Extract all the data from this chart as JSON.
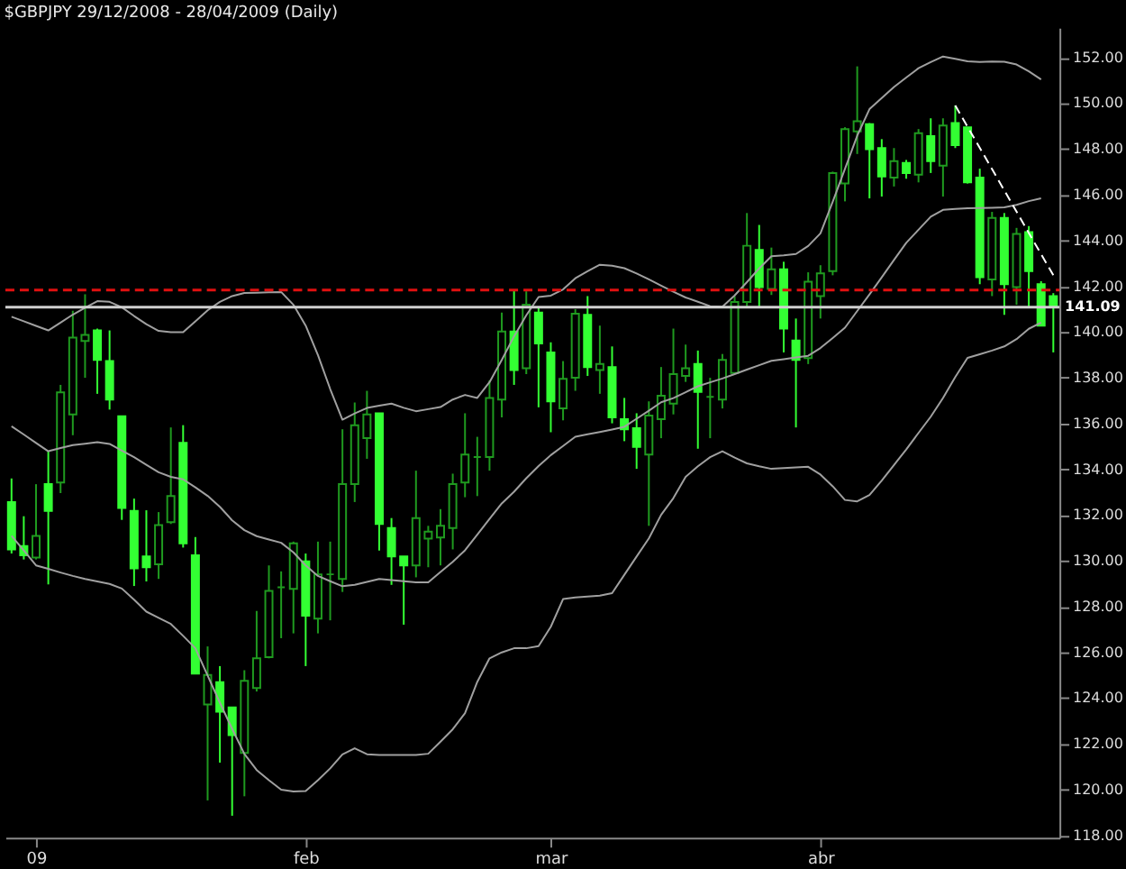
{
  "chart_data": {
    "type": "candlestick",
    "title": "$GBPJPY  29/12/2008 - 28/04/2009 (Daily)",
    "categories": [
      null,
      null,
      "09",
      null,
      null,
      null,
      null,
      null,
      null,
      null,
      null,
      null,
      null,
      null,
      null,
      null,
      null,
      null,
      null,
      null,
      null,
      null,
      null,
      null,
      "feb",
      null,
      null,
      null,
      null,
      null,
      null,
      null,
      null,
      null,
      null,
      null,
      null,
      null,
      null,
      null,
      null,
      null,
      null,
      null,
      "mar",
      null,
      null,
      null,
      null,
      null,
      null,
      null,
      null,
      null,
      null,
      null,
      null,
      null,
      null,
      null,
      null,
      null,
      null,
      null,
      null,
      null,
      "abr",
      null,
      null,
      null,
      null,
      null,
      null,
      null,
      null,
      null,
      null,
      null,
      null,
      null,
      null,
      null,
      null,
      null,
      null,
      null
    ],
    "ohlc": [
      [
        132.57,
        133.6,
        130.32,
        130.5
      ],
      [
        130.65,
        131.95,
        130.06,
        130.24
      ],
      [
        130.14,
        133.35,
        130.06,
        131.09
      ],
      [
        133.35,
        134.79,
        128.97,
        132.18
      ],
      [
        133.42,
        137.69,
        132.96,
        137.36
      ],
      [
        136.4,
        140.93,
        135.49,
        139.76
      ],
      [
        139.61,
        141.65,
        138.0,
        139.87
      ],
      [
        140.07,
        140.15,
        137.3,
        138.78
      ],
      [
        138.73,
        140.07,
        136.61,
        137.05
      ],
      [
        136.32,
        136.32,
        131.79,
        132.31
      ],
      [
        132.18,
        132.72,
        128.9,
        129.67
      ],
      [
        130.19,
        132.21,
        129.1,
        129.72
      ],
      [
        129.85,
        132.13,
        129.21,
        131.56
      ],
      [
        131.69,
        135.83,
        131.61,
        132.83
      ],
      [
        135.16,
        135.93,
        130.58,
        130.76
      ],
      [
        130.24,
        131.04,
        125.07,
        125.07
      ],
      [
        123.72,
        126.26,
        119.53,
        125.01
      ],
      [
        124.7,
        125.4,
        121.18,
        123.41
      ],
      [
        123.59,
        123.59,
        118.86,
        122.38
      ],
      [
        121.6,
        125.22,
        119.71,
        124.76
      ],
      [
        124.44,
        127.81,
        124.29,
        125.74
      ],
      [
        125.79,
        129.8,
        125.74,
        128.69
      ],
      [
        128.84,
        129.54,
        126.62,
        128.84
      ],
      [
        128.77,
        130.84,
        126.83,
        130.76
      ],
      [
        129.98,
        130.32,
        125.4,
        127.6
      ],
      [
        127.47,
        130.84,
        126.83,
        129.41
      ],
      [
        129.41,
        130.84,
        127.4,
        129.41
      ],
      [
        129.21,
        135.75,
        128.64,
        133.35
      ],
      [
        133.35,
        136.92,
        132.57,
        135.93
      ],
      [
        135.36,
        137.43,
        134.46,
        136.4
      ],
      [
        136.45,
        136.45,
        130.45,
        131.61
      ],
      [
        131.43,
        131.87,
        128.95,
        130.19
      ],
      [
        130.19,
        130.19,
        127.21,
        129.8
      ],
      [
        129.8,
        133.94,
        129.28,
        131.87
      ],
      [
        130.97,
        131.53,
        129.72,
        131.28
      ],
      [
        131.02,
        132.26,
        129.8,
        131.53
      ],
      [
        131.43,
        133.81,
        130.5,
        133.35
      ],
      [
        133.42,
        136.45,
        132.78,
        134.64
      ],
      [
        134.54,
        135.42,
        132.83,
        134.54
      ],
      [
        134.54,
        137.89,
        133.94,
        137.12
      ],
      [
        137.05,
        140.85,
        136.27,
        140.02
      ],
      [
        140.02,
        141.83,
        137.69,
        138.34
      ],
      [
        138.42,
        141.78,
        138.16,
        141.19
      ],
      [
        140.85,
        141.06,
        136.71,
        139.5
      ],
      [
        139.11,
        139.55,
        135.62,
        136.97
      ],
      [
        136.66,
        138.73,
        136.14,
        137.95
      ],
      [
        138.0,
        141.0,
        137.43,
        140.8
      ],
      [
        140.75,
        141.57,
        138.08,
        138.47
      ],
      [
        138.34,
        140.28,
        137.3,
        138.6
      ],
      [
        138.47,
        139.37,
        136.01,
        136.27
      ],
      [
        136.19,
        137.12,
        135.23,
        135.75
      ],
      [
        135.8,
        136.45,
        134.02,
        134.98
      ],
      [
        134.64,
        136.97,
        131.53,
        136.35
      ],
      [
        136.19,
        138.47,
        135.36,
        137.22
      ],
      [
        136.87,
        140.15,
        136.4,
        138.16
      ],
      [
        138.08,
        139.45,
        137.82,
        138.42
      ],
      [
        138.6,
        139.19,
        134.9,
        137.38
      ],
      [
        137.17,
        138.0,
        135.36,
        137.17
      ],
      [
        137.05,
        139.04,
        136.66,
        138.78
      ],
      [
        138.21,
        141.57,
        138.21,
        141.31
      ],
      [
        141.31,
        145.2,
        141.06,
        143.77
      ],
      [
        143.59,
        144.68,
        141.06,
        141.96
      ],
      [
        141.88,
        143.69,
        141.62,
        142.74
      ],
      [
        142.74,
        143.07,
        139.11,
        140.15
      ],
      [
        139.63,
        140.59,
        135.83,
        138.78
      ],
      [
        138.86,
        142.61,
        138.6,
        142.2
      ],
      [
        141.57,
        142.92,
        140.59,
        142.56
      ],
      [
        142.66,
        147.01,
        142.48,
        146.95
      ],
      [
        146.49,
        148.95,
        145.71,
        148.87
      ],
      [
        148.77,
        151.61,
        147.78,
        149.21
      ],
      [
        149.08,
        149.13,
        145.84,
        147.99
      ],
      [
        148.04,
        148.43,
        145.92,
        146.8
      ],
      [
        146.75,
        148.04,
        146.36,
        147.47
      ],
      [
        147.39,
        147.52,
        146.7,
        146.95
      ],
      [
        146.88,
        148.87,
        146.54,
        148.69
      ],
      [
        148.56,
        149.34,
        146.95,
        147.47
      ],
      [
        147.27,
        149.34,
        145.92,
        149.02
      ],
      [
        149.13,
        149.9,
        148.04,
        148.17
      ],
      [
        148.95,
        148.95,
        146.49,
        146.54
      ],
      [
        146.75,
        147.14,
        142.09,
        142.4
      ],
      [
        142.3,
        145.25,
        141.57,
        144.99
      ],
      [
        144.99,
        145.2,
        140.75,
        142.09
      ],
      [
        141.96,
        144.55,
        141.19,
        144.29
      ],
      [
        144.37,
        144.63,
        141.11,
        142.66
      ],
      [
        142.09,
        142.22,
        140.28,
        140.28
      ],
      [
        141.57,
        141.7,
        139.11,
        141.09
      ]
    ],
    "colors": [
      "#33ff33",
      "#33ff33",
      "#1f9a1f",
      "#33ff33",
      "#1f9a1f",
      "#1f9a1f",
      "#1f9a1f",
      "#33ff33",
      "#33ff33",
      "#33ff33",
      "#33ff33",
      "#33ff33",
      "#1f9a1f",
      "#1f9a1f",
      "#33ff33",
      "#33ff33",
      "#1f9a1f",
      "#33ff33",
      "#33ff33",
      "#1f9a1f",
      "#1f9a1f",
      "#1f9a1f",
      "#1f9a1f",
      "#1f9a1f",
      "#33ff33",
      "#1f9a1f",
      "#1f9a1f",
      "#1f9a1f",
      "#1f9a1f",
      "#1f9a1f",
      "#33ff33",
      "#33ff33",
      "#33ff33",
      "#1f9a1f",
      "#1f9a1f",
      "#1f9a1f",
      "#1f9a1f",
      "#1f9a1f",
      "#1f9a1f",
      "#1f9a1f",
      "#1f9a1f",
      "#33ff33",
      "#1f9a1f",
      "#33ff33",
      "#33ff33",
      "#1f9a1f",
      "#1f9a1f",
      "#33ff33",
      "#1f9a1f",
      "#33ff33",
      "#33ff33",
      "#33ff33",
      "#1f9a1f",
      "#1f9a1f",
      "#1f9a1f",
      "#1f9a1f",
      "#33ff33",
      "#1f9a1f",
      "#1f9a1f",
      "#1f9a1f",
      "#1f9a1f",
      "#33ff33",
      "#1f9a1f",
      "#33ff33",
      "#33ff33",
      "#1f9a1f",
      "#1f9a1f",
      "#1f9a1f",
      "#1f9a1f",
      "#1f9a1f",
      "#33ff33",
      "#33ff33",
      "#1f9a1f",
      "#33ff33",
      "#1f9a1f",
      "#33ff33",
      "#1f9a1f",
      "#33ff33",
      "#33ff33",
      "#33ff33",
      "#1f9a1f",
      "#33ff33",
      "#1f9a1f",
      "#33ff33",
      "#33ff33",
      "#33ff33"
    ],
    "series": [
      {
        "type": "line",
        "color": "#a0a0a0",
        "line_style": "solid",
        "values": [
          140.67,
          140.47,
          140.27,
          140.07,
          140.41,
          140.76,
          141.06,
          141.35,
          141.32,
          141.08,
          140.7,
          140.34,
          140.05,
          139.99,
          139.99,
          140.47,
          140.95,
          141.32,
          141.57,
          141.71,
          141.72,
          141.74,
          141.75,
          141.19,
          140.28,
          138.99,
          137.51,
          136.17,
          136.44,
          136.68,
          136.78,
          136.87,
          136.69,
          136.54,
          136.63,
          136.72,
          137.05,
          137.25,
          137.12,
          137.81,
          138.78,
          139.81,
          140.73,
          141.53,
          141.59,
          141.86,
          142.35,
          142.66,
          142.94,
          142.9,
          142.79,
          142.56,
          142.3,
          142.03,
          141.76,
          141.51,
          141.32,
          141.13,
          141.11,
          141.6,
          142.18,
          142.78,
          143.31,
          143.35,
          143.41,
          143.76,
          144.31,
          145.69,
          147.13,
          148.58,
          149.74,
          150.23,
          150.71,
          151.12,
          151.53,
          151.8,
          152.04,
          151.94,
          151.83,
          151.8,
          151.82,
          151.81,
          151.69,
          151.39,
          151.04,
          null
        ]
      },
      {
        "type": "line",
        "color": "#a0a0a0",
        "line_style": "solid",
        "values": [
          135.88,
          135.52,
          135.15,
          134.79,
          134.93,
          135.06,
          135.12,
          135.19,
          135.11,
          134.82,
          134.53,
          134.2,
          133.87,
          133.67,
          133.56,
          133.21,
          132.84,
          132.36,
          131.77,
          131.34,
          131.08,
          130.93,
          130.79,
          130.37,
          129.8,
          129.34,
          129.11,
          128.89,
          128.95,
          129.08,
          129.21,
          129.16,
          129.11,
          129.06,
          129.06,
          129.51,
          129.96,
          130.46,
          131.14,
          131.83,
          132.51,
          133.02,
          133.61,
          134.14,
          134.62,
          135.02,
          135.42,
          135.53,
          135.63,
          135.74,
          135.86,
          136.21,
          136.56,
          136.93,
          137.11,
          137.37,
          137.63,
          137.8,
          137.97,
          138.16,
          138.36,
          138.55,
          138.74,
          138.81,
          138.89,
          138.96,
          139.3,
          139.74,
          140.19,
          140.92,
          141.64,
          142.39,
          143.15,
          143.9,
          144.47,
          145.04,
          145.34,
          145.38,
          145.41,
          145.42,
          145.43,
          145.45,
          145.56,
          145.72,
          145.84,
          null
        ]
      },
      {
        "type": "line",
        "color": "#a0a0a0",
        "line_style": "solid",
        "values": [
          131.09,
          130.45,
          129.8,
          129.65,
          129.49,
          129.34,
          129.21,
          129.1,
          128.99,
          128.79,
          128.3,
          127.78,
          127.51,
          127.24,
          126.72,
          126.18,
          124.99,
          123.8,
          122.66,
          121.56,
          120.86,
          120.41,
          120.0,
          119.92,
          119.94,
          120.41,
          120.93,
          121.54,
          121.81,
          121.55,
          121.52,
          121.52,
          121.52,
          121.52,
          121.57,
          122.1,
          122.64,
          123.34,
          124.71,
          125.74,
          126.0,
          126.18,
          126.18,
          126.27,
          127.12,
          128.33,
          128.4,
          128.44,
          128.48,
          128.59,
          129.39,
          130.19,
          130.98,
          132.01,
          132.74,
          133.67,
          134.13,
          134.53,
          134.79,
          134.51,
          134.26,
          134.13,
          134.02,
          134.05,
          134.08,
          134.11,
          133.77,
          133.26,
          132.66,
          132.6,
          132.88,
          133.51,
          134.19,
          134.87,
          135.59,
          136.3,
          137.12,
          138.03,
          138.87,
          139.03,
          139.19,
          139.37,
          139.69,
          140.14,
          140.41,
          null
        ]
      },
      {
        "type": "line",
        "color": "#ffffff",
        "line_style": "dashed",
        "values": [
          null,
          null,
          null,
          null,
          null,
          null,
          null,
          null,
          null,
          null,
          null,
          null,
          null,
          null,
          null,
          null,
          null,
          null,
          null,
          null,
          null,
          null,
          null,
          null,
          null,
          null,
          null,
          null,
          null,
          null,
          null,
          null,
          null,
          null,
          null,
          null,
          null,
          null,
          null,
          null,
          null,
          null,
          null,
          null,
          null,
          null,
          null,
          null,
          null,
          null,
          null,
          null,
          null,
          null,
          null,
          null,
          null,
          null,
          null,
          null,
          null,
          null,
          null,
          null,
          null,
          null,
          null,
          null,
          null,
          null,
          null,
          null,
          null,
          null,
          null,
          null,
          null,
          149.9,
          148.97,
          148.05,
          147.12,
          146.19,
          145.26,
          144.33,
          143.41,
          142.48
        ]
      }
    ],
    "ref_lines": [
      {
        "axis": "y",
        "value": 141.83,
        "color": "#e01010",
        "line_style": "dashed"
      },
      {
        "axis": "y",
        "value": 141.09,
        "label": "141.09",
        "color": "#d0d0d0",
        "line_style": "solid"
      }
    ],
    "ylim": [
      117.9,
      153.3
    ],
    "yticks": [
      {
        "value": 118,
        "label": "118.00"
      },
      {
        "value": 120,
        "label": "120.00"
      },
      {
        "value": 122,
        "label": "122.00"
      },
      {
        "value": 124,
        "label": "124.00"
      },
      {
        "value": 126,
        "label": "126.00"
      },
      {
        "value": 128,
        "label": "128.00"
      },
      {
        "value": 130,
        "label": "130.00"
      },
      {
        "value": 132,
        "label": "132.00"
      },
      {
        "value": 134,
        "label": "134.00"
      },
      {
        "value": 136,
        "label": "136.00"
      },
      {
        "value": 138,
        "label": "138.00"
      },
      {
        "value": 140,
        "label": "140.00"
      },
      {
        "value": 142,
        "label": "142.00"
      },
      {
        "value": 144,
        "label": "144.00"
      },
      {
        "value": 146,
        "label": "146.00"
      },
      {
        "value": 148,
        "label": "148.00"
      },
      {
        "value": 150,
        "label": "150.00"
      },
      {
        "value": 152,
        "label": "152.00"
      }
    ],
    "grid": false
  }
}
